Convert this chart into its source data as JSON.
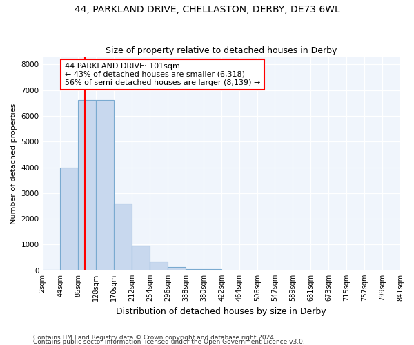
{
  "title1": "44, PARKLAND DRIVE, CHELLASTON, DERBY, DE73 6WL",
  "title2": "Size of property relative to detached houses in Derby",
  "xlabel": "Distribution of detached houses by size in Derby",
  "ylabel": "Number of detached properties",
  "bin_edges": [
    2,
    44,
    86,
    128,
    170,
    212,
    254,
    296,
    338,
    380,
    422,
    464,
    506,
    547,
    589,
    631,
    673,
    715,
    757,
    799,
    841
  ],
  "bar_heights": [
    30,
    4000,
    6600,
    6600,
    2600,
    950,
    330,
    130,
    50,
    50,
    0,
    0,
    0,
    0,
    0,
    0,
    0,
    0,
    0,
    0
  ],
  "bar_color": "#c8d8ee",
  "bar_edge_color": "#7aaad0",
  "plot_bg_color": "#f0f5fc",
  "fig_bg_color": "#ffffff",
  "property_size": 101,
  "annotation_text": "44 PARKLAND DRIVE: 101sqm\n← 43% of detached houses are smaller (6,318)\n56% of semi-detached houses are larger (8,139) →",
  "annotation_box_color": "white",
  "annotation_box_edge_color": "red",
  "vline_color": "red",
  "ylim": [
    0,
    8300
  ],
  "yticks": [
    0,
    1000,
    2000,
    3000,
    4000,
    5000,
    6000,
    7000,
    8000
  ],
  "footnote1": "Contains HM Land Registry data © Crown copyright and database right 2024.",
  "footnote2": "Contains public sector information licensed under the Open Government Licence v3.0.",
  "title1_fontsize": 10,
  "title2_fontsize": 9,
  "xlabel_fontsize": 9,
  "ylabel_fontsize": 8,
  "tick_fontsize": 7,
  "footnote_fontsize": 6.5
}
